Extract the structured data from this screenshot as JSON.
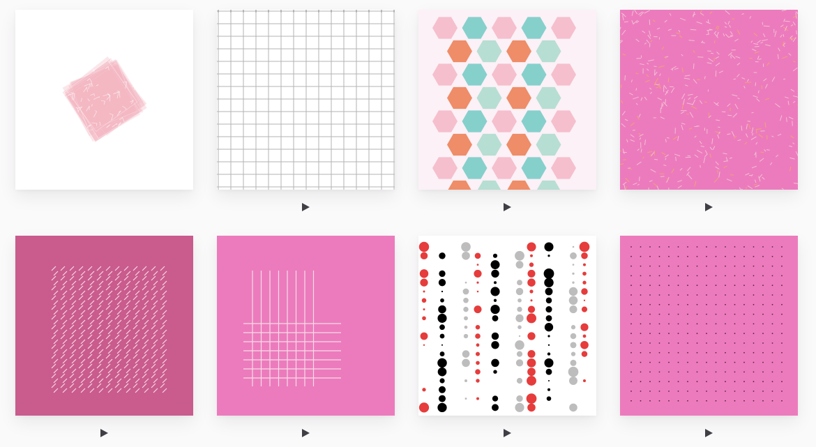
{
  "gallery": {
    "items": [
      {
        "id": "pattern-1",
        "kind": "rotated-pink-squares",
        "background": "#ffffff",
        "color": "#f4b6c2",
        "show_play": false
      },
      {
        "id": "pattern-2",
        "kind": "grey-grid",
        "background": "#ffffff",
        "color": "#b3b3b3",
        "show_play": true
      },
      {
        "id": "pattern-3",
        "kind": "hexagon-tiling",
        "background": "#fbf1f7",
        "colors": [
          "#f6bfcd",
          "#86d0cc",
          "#ee8d68",
          "#b7ded2"
        ],
        "show_play": true
      },
      {
        "id": "pattern-4",
        "kind": "confetti-dashes",
        "background": "#ec7bbd",
        "colors": [
          "#f3c8d8",
          "#f2a66c"
        ],
        "show_play": true
      },
      {
        "id": "pattern-5",
        "kind": "diagonal-dashes",
        "background": "#c95b8d",
        "color": "#f6d9e4",
        "show_play": true
      },
      {
        "id": "pattern-6",
        "kind": "cross-lines",
        "background": "#ec7bbd",
        "color": "#f6dde7",
        "show_play": true
      },
      {
        "id": "pattern-7",
        "kind": "dot-columns",
        "background": "#ffffff",
        "colors": [
          "#e63c3c",
          "#000000",
          "#bdbdbd"
        ],
        "show_play": true
      },
      {
        "id": "pattern-8",
        "kind": "dot-grid",
        "background": "#ec7bbd",
        "color": "#5a2340",
        "show_play": true
      }
    ],
    "play_icon": "play-icon",
    "play_color": "#3f3f45"
  }
}
